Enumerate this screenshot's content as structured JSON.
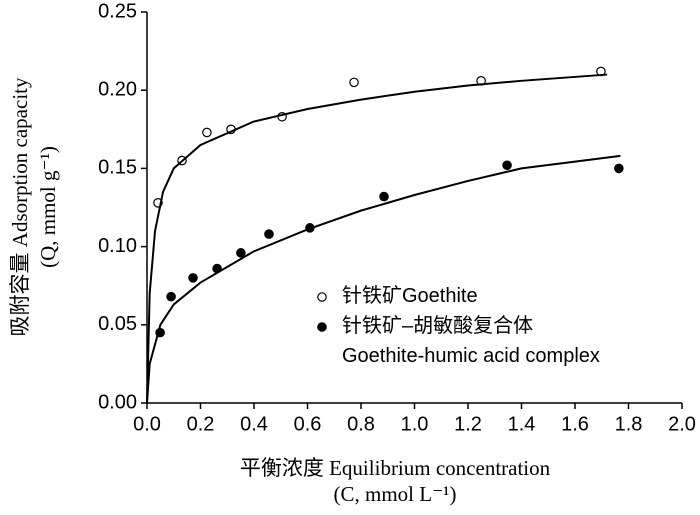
{
  "chart_data": {
    "type": "scatter",
    "xlabel": [
      "平衡浓度 Equilibrium concentration",
      "(C, mmol L⁻¹)"
    ],
    "ylabel": [
      "吸附容量 Adsorption capacity",
      "(Q, mmol g⁻¹)"
    ],
    "xlim": [
      0,
      2.0
    ],
    "ylim": [
      0,
      0.25
    ],
    "xticks": [
      {
        "value": 0,
        "label": "0.0"
      },
      {
        "value": 0.2,
        "label": "0.2"
      },
      {
        "value": 0.4,
        "label": "0.4"
      },
      {
        "value": 0.6,
        "label": "0.6"
      },
      {
        "value": 0.8,
        "label": "0.8"
      },
      {
        "value": 1.0,
        "label": "1.0"
      },
      {
        "value": 1.2,
        "label": "1.2"
      },
      {
        "value": 1.4,
        "label": "1.4"
      },
      {
        "value": 1.6,
        "label": "1.6"
      },
      {
        "value": 1.8,
        "label": "1.8"
      },
      {
        "value": 2.0,
        "label": "2.0"
      }
    ],
    "yticks": [
      {
        "value": 0,
        "label": "0.00"
      },
      {
        "value": 0.05,
        "label": "0.05"
      },
      {
        "value": 0.1,
        "label": "0.10"
      },
      {
        "value": 0.15,
        "label": "0.15"
      },
      {
        "value": 0.2,
        "label": "0.20"
      },
      {
        "value": 0.25,
        "label": "0.25"
      }
    ],
    "series": [
      {
        "name": "针铁矿Goethite",
        "marker": "open",
        "color": "#000000",
        "x": [
          0.041,
          0.131,
          0.224,
          0.314,
          0.505,
          0.774,
          1.249,
          1.697
        ],
        "values": [
          0.128,
          0.155,
          0.173,
          0.175,
          0.183,
          0.205,
          0.206,
          0.212
        ]
      },
      {
        "name": "针铁矿–胡敏酸复合体\nGoethite-humic acid complex",
        "marker": "filled",
        "color": "#000000",
        "x": [
          0.049,
          0.09,
          0.172,
          0.262,
          0.351,
          0.456,
          0.609,
          0.886,
          1.346,
          1.764
        ],
        "values": [
          0.045,
          0.068,
          0.08,
          0.086,
          0.096,
          0.108,
          0.112,
          0.132,
          0.152,
          0.15
        ]
      },
      {
        "marker": "line",
        "color": "#000000",
        "x": [
          0,
          0.01,
          0.03,
          0.06,
          0.1,
          0.2,
          0.4,
          0.6,
          0.8,
          1.0,
          1.2,
          1.4,
          1.72
        ],
        "values": [
          0,
          0.07,
          0.11,
          0.135,
          0.15,
          0.165,
          0.18,
          0.188,
          0.194,
          0.199,
          0.203,
          0.206,
          0.21
        ]
      },
      {
        "marker": "line",
        "color": "#000000",
        "x": [
          0,
          0.01,
          0.05,
          0.1,
          0.2,
          0.4,
          0.6,
          0.8,
          1.0,
          1.2,
          1.4,
          1.77
        ],
        "values": [
          0,
          0.025,
          0.05,
          0.063,
          0.077,
          0.097,
          0.111,
          0.123,
          0.133,
          0.142,
          0.15,
          0.158
        ]
      }
    ]
  }
}
